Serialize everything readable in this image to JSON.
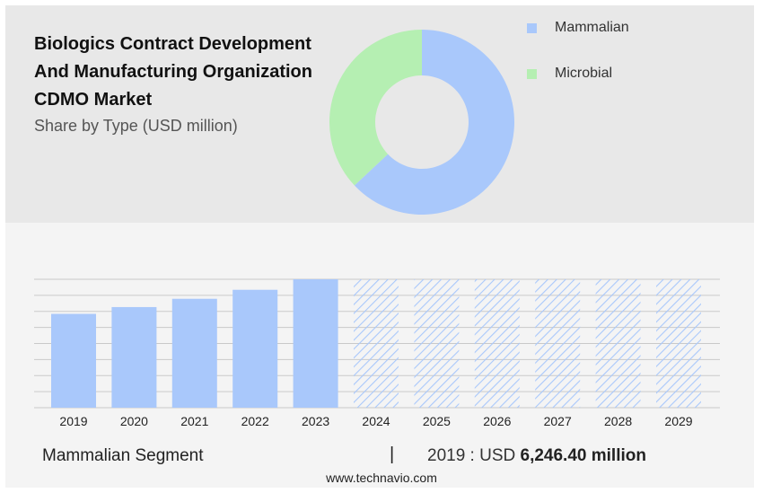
{
  "chart_data": [
    {
      "type": "pie",
      "variant": "donut",
      "title": "Biologics Contract Development And Manufacturing Organization CDMO Market",
      "title_lines": [
        "Biologics Contract Development",
        "And Manufacturing Organization",
        "CDMO Market"
      ],
      "subtitle": "Share by Type (USD million)",
      "legend_position": "top-right",
      "slices": [
        {
          "label": "Mammalian",
          "value": 63,
          "color": "#a9c8fb"
        },
        {
          "label": "Microbial",
          "value": 37,
          "color": "#b5efb2"
        }
      ]
    },
    {
      "type": "bar",
      "series_name": "Mammalian Segment",
      "categories": [
        "2019",
        "2020",
        "2021",
        "2022",
        "2023",
        "2024",
        "2025",
        "2026",
        "2027",
        "2028",
        "2029"
      ],
      "values": [
        6246.4,
        6700,
        7250,
        7850,
        8550,
        8550,
        8550,
        8550,
        8550,
        8550,
        8550
      ],
      "forecast_flags": [
        false,
        false,
        false,
        false,
        false,
        true,
        true,
        true,
        true,
        true,
        true
      ],
      "ylim": [
        0,
        8550
      ],
      "grid": true,
      "bar_color": "#a9c8fb",
      "forecast_hatch_color": "#a9c8fb"
    }
  ],
  "footer": {
    "segment_label": "Mammalian Segment",
    "divider": "|",
    "year_prefix": "2019 : USD",
    "value": "6,246.40 million"
  },
  "website": "www.technavio.com"
}
